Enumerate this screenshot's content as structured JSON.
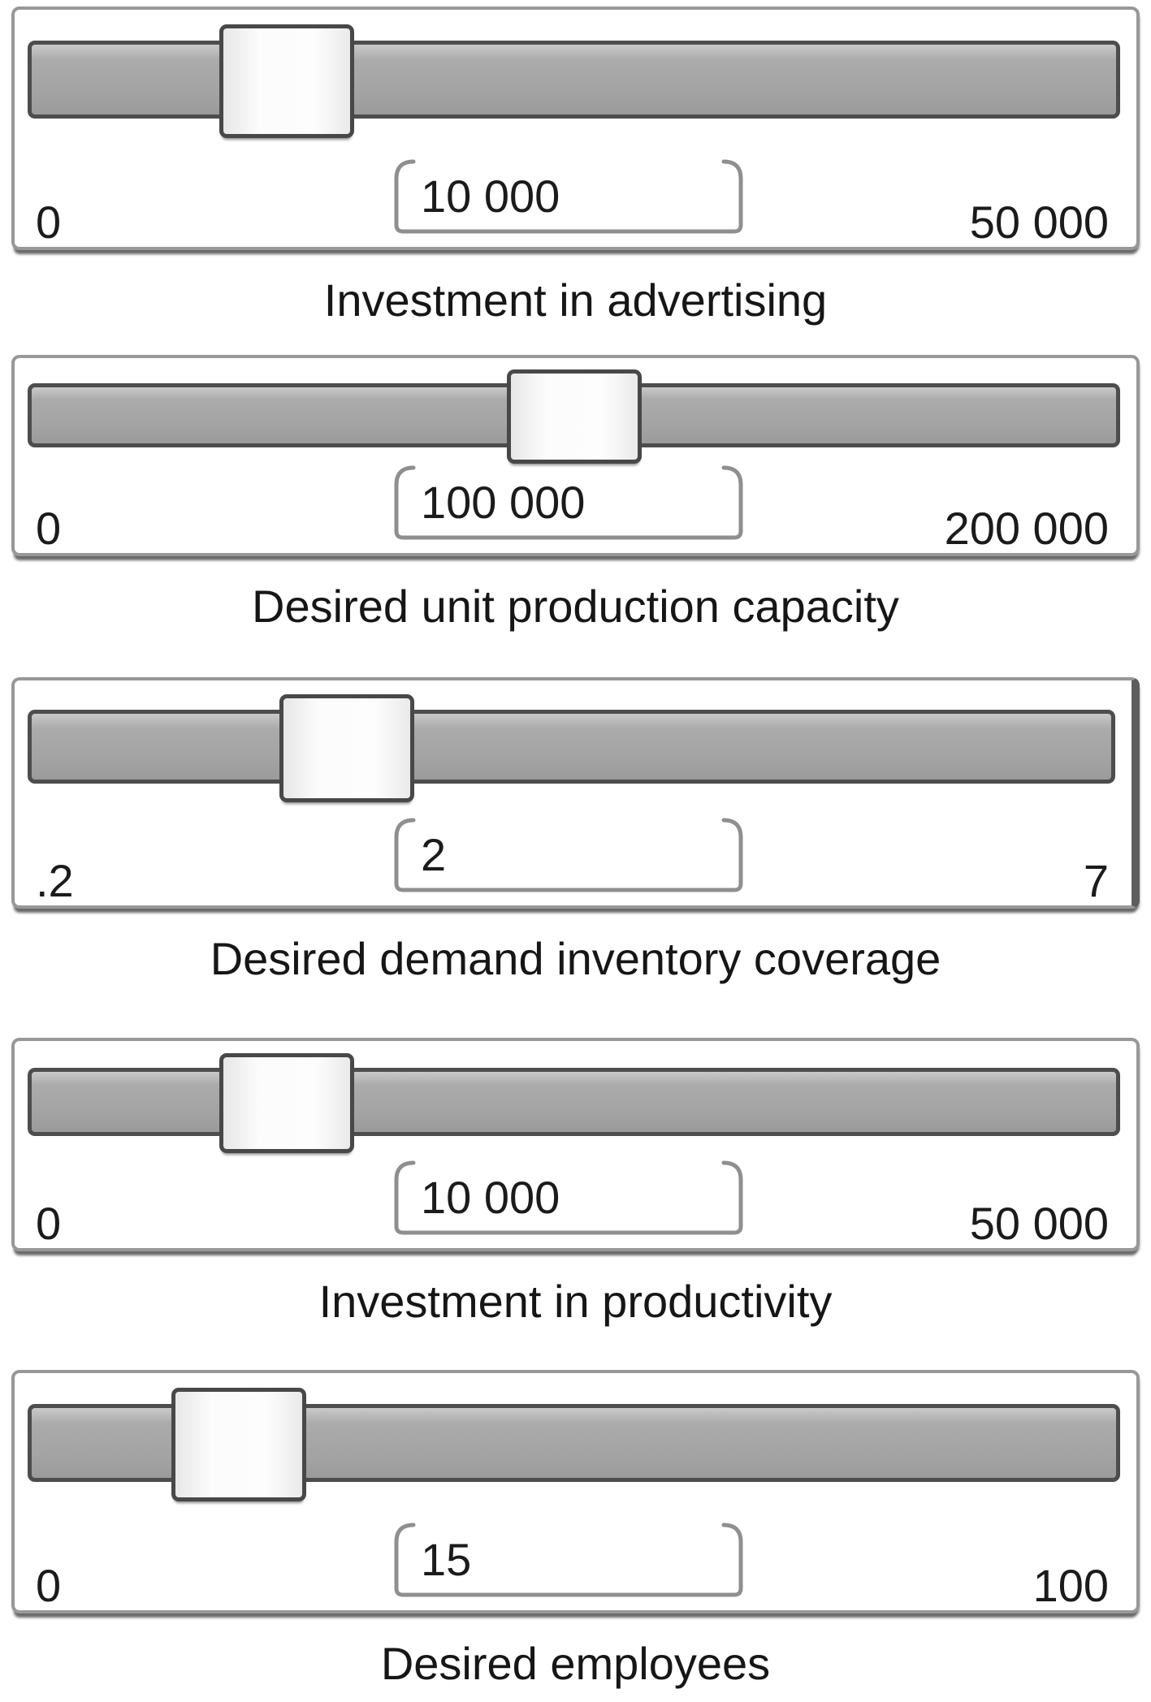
{
  "sliders": [
    {
      "caption": "Investment in advertising",
      "min_label": "0",
      "value_label": "10 000",
      "max_label": "50 000"
    },
    {
      "caption": "Desired unit production capacity",
      "min_label": "0",
      "value_label": "100 000",
      "max_label": "200 000"
    },
    {
      "caption": "Desired demand inventory coverage",
      "min_label": ".2",
      "value_label": "2",
      "max_label": "7"
    },
    {
      "caption": "Investment in productivity",
      "min_label": "0",
      "value_label": "10 000",
      "max_label": "50 000"
    },
    {
      "caption": "Desired employees",
      "min_label": "0",
      "value_label": "15",
      "max_label": "100"
    }
  ],
  "colors": {
    "panel_border": "#989898",
    "panel_right_accent": "#5d5d5d",
    "track_fill": "#a5a5a5",
    "track_border": "#4d4d4d",
    "handle_fill": "#fbfbfb",
    "handle_border": "#484848",
    "bracket_stroke": "#8f8f8f",
    "text": "#1b1b1b",
    "background": "#ffffff"
  }
}
